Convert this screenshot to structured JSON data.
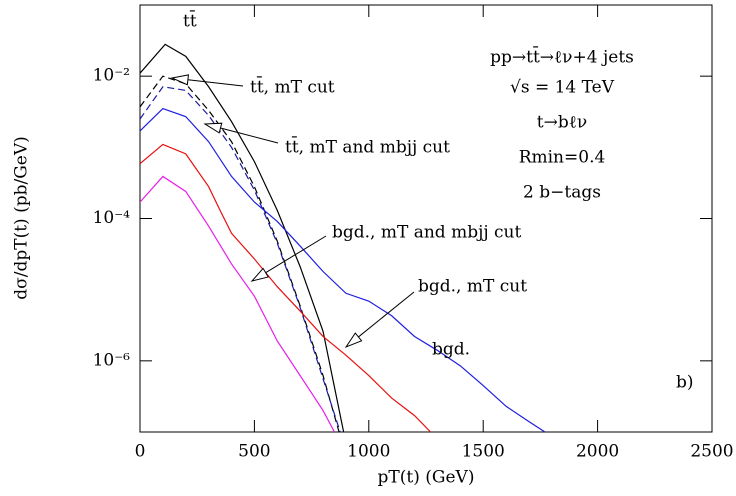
{
  "chart_data": {
    "type": "line",
    "xlabel": "pT(t)  (GeV)",
    "ylabel": "dσ/dpT(t)  (pb/GeV)",
    "log_y": true,
    "xlim": [
      0,
      2500
    ],
    "xticks": [
      0,
      500,
      1000,
      1500,
      2000,
      2500
    ],
    "ylim": [
      1e-07,
      0.1
    ],
    "yticks": [
      {
        "value": 0.01,
        "label": "10⁻²"
      },
      {
        "value": 0.0001,
        "label": "10⁻⁴"
      },
      {
        "value": 1e-06,
        "label": "10⁻⁶"
      }
    ],
    "annotations": [
      "pp→tt̄→ℓν+4 jets",
      "√s = 14 TeV",
      "t→bℓν",
      "Rmin=0.4",
      "2 b−tags"
    ],
    "panel_label": "b)",
    "series": [
      {
        "name": "tt̄",
        "color": "#000000",
        "dash": false,
        "x": [
          0,
          110,
          200,
          300,
          400,
          500,
          600,
          700,
          800,
          890
        ],
        "values": [
          0.011,
          0.028,
          0.019,
          0.0071,
          0.0023,
          0.00063,
          0.00013,
          2.1e-05,
          2.6e-06,
          1e-07
        ]
      },
      {
        "name": "tt̄, mT cut",
        "color": "#000000",
        "dash": true,
        "x": [
          0,
          100,
          200,
          300,
          400,
          500,
          600,
          700,
          800,
          870
        ],
        "values": [
          0.0037,
          0.01,
          0.0078,
          0.0033,
          0.0012,
          0.00028,
          4.8e-05,
          5.9e-06,
          6.2e-07,
          1e-07
        ]
      },
      {
        "name": "tt̄, mT and mbjj cut",
        "color": "#1a1aa6",
        "dash": true,
        "x": [
          0,
          100,
          200,
          300,
          400,
          500,
          600,
          700,
          800,
          875
        ],
        "values": [
          0.0025,
          0.0071,
          0.0063,
          0.0028,
          0.001,
          0.00025,
          4.5e-05,
          5.6e-06,
          5.6e-07,
          1e-07
        ]
      },
      {
        "name": "bgd.",
        "color": "#1f1fe0",
        "dash": false,
        "x": [
          0,
          100,
          200,
          300,
          400,
          500,
          600,
          700,
          800,
          900,
          1000,
          1100,
          1200,
          1300,
          1400,
          1500,
          1600,
          1700,
          1770
        ],
        "values": [
          0.0017,
          0.0035,
          0.0027,
          0.0012,
          0.00039,
          0.00017,
          9.1e-05,
          4.1e-05,
          1.8e-05,
          8.9e-06,
          6.9e-06,
          4.3e-06,
          2.2e-06,
          1.4e-06,
          8.5e-07,
          4.5e-07,
          2.3e-07,
          1.4e-07,
          1e-07
        ]
      },
      {
        "name": "bgd., mT cut",
        "color": "#e81010",
        "dash": false,
        "x": [
          0,
          100,
          200,
          300,
          350,
          400,
          500,
          600,
          700,
          800,
          900,
          1000,
          1100,
          1200,
          1270
        ],
        "values": [
          0.00059,
          0.0011,
          0.00081,
          0.00028,
          0.00013,
          6.2e-05,
          2.7e-05,
          1.1e-05,
          5e-06,
          2.2e-06,
          1.2e-06,
          6.2e-07,
          3e-07,
          1.7e-07,
          1e-07
        ]
      },
      {
        "name": "bgd., mT and mbjj cut",
        "color": "#e81ee8",
        "dash": false,
        "x": [
          0,
          100,
          200,
          300,
          400,
          500,
          600,
          700,
          800,
          850
        ],
        "values": [
          0.00017,
          0.00039,
          0.00024,
          7.8e-05,
          2.3e-05,
          8.1e-06,
          1.9e-06,
          6.2e-07,
          2e-07,
          1e-07
        ]
      }
    ]
  }
}
